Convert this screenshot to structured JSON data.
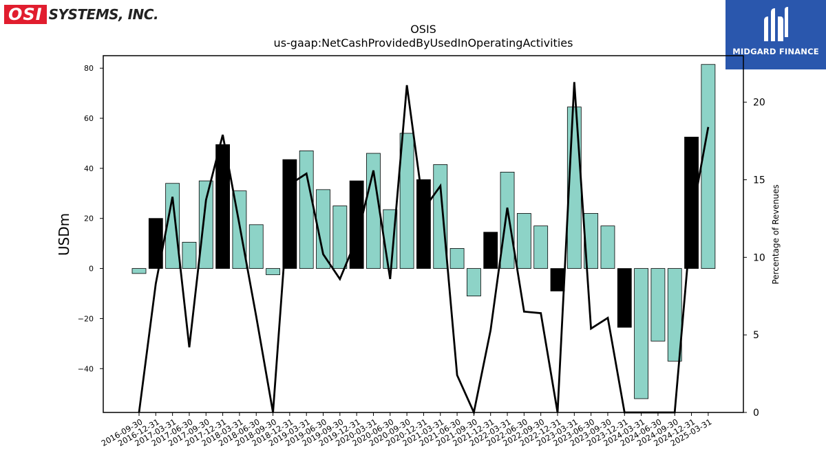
{
  "logos": {
    "osi_mark": "OSI",
    "osi_text": "SYSTEMS, INC.",
    "midgard_text": "MIDGARD FINANCE"
  },
  "chart_data": {
    "type": "bar",
    "title": "OSIS",
    "subtitle": "us-gaap:NetCashProvidedByUsedInOperatingActivities",
    "ylabel": "USDm",
    "y2label": "Percentage of Revenues",
    "ylim": [
      -57.5,
      85
    ],
    "y2lim": [
      0,
      23
    ],
    "yticks": [
      -40,
      -20,
      0,
      20,
      40,
      60,
      80
    ],
    "y2ticks": [
      0,
      5,
      10,
      15,
      20
    ],
    "colors": {
      "bar_default": "#8dd3c7",
      "bar_highlight": "#000000",
      "line": "#000000"
    },
    "categories": [
      "2016-09-30",
      "2016-12-31",
      "2017-03-31",
      "2017-06-30",
      "2017-09-30",
      "2017-12-31",
      "2018-03-31",
      "2018-06-30",
      "2018-09-30",
      "2018-12-31",
      "2019-03-31",
      "2019-06-30",
      "2019-09-30",
      "2019-12-31",
      "2020-03-31",
      "2020-06-30",
      "2020-09-30",
      "2020-12-31",
      "2021-03-31",
      "2021-06-30",
      "2021-09-30",
      "2021-12-31",
      "2022-03-31",
      "2022-06-30",
      "2022-09-30",
      "2022-12-31",
      "2023-03-31",
      "2023-06-30",
      "2023-09-30",
      "2023-12-31",
      "2024-03-31",
      "2024-06-30",
      "2024-09-30",
      "2024-12-31",
      "2025-03-31"
    ],
    "series": [
      {
        "type": "bar",
        "values": [
          -2,
          20,
          34,
          10.5,
          35,
          49.5,
          31,
          17.5,
          -2.5,
          43.5,
          47,
          31.5,
          25,
          35,
          46,
          23.5,
          54,
          35.5,
          41.5,
          8,
          -11,
          14.5,
          38.5,
          22,
          17,
          -9,
          64.5,
          22,
          17,
          -23.5,
          -52,
          -29,
          -37,
          52.5,
          81.5
        ],
        "highlight": [
          false,
          true,
          false,
          false,
          false,
          true,
          false,
          false,
          false,
          true,
          false,
          false,
          false,
          true,
          false,
          false,
          false,
          true,
          false,
          false,
          false,
          true,
          false,
          false,
          false,
          true,
          false,
          false,
          false,
          true,
          false,
          false,
          false,
          true,
          false
        ]
      },
      {
        "type": "line",
        "axis": "right",
        "values": [
          0,
          8.3,
          13.9,
          4.2,
          13.7,
          17.9,
          12.1,
          6.2,
          0,
          14.7,
          15.4,
          10.2,
          8.6,
          11.2,
          15.6,
          8.6,
          21.1,
          13.1,
          14.6,
          2.4,
          0,
          5.3,
          13.2,
          6.5,
          6.4,
          0,
          21.3,
          5.4,
          6.1,
          0,
          0,
          0,
          0,
          12.5,
          18.4
        ]
      }
    ]
  }
}
